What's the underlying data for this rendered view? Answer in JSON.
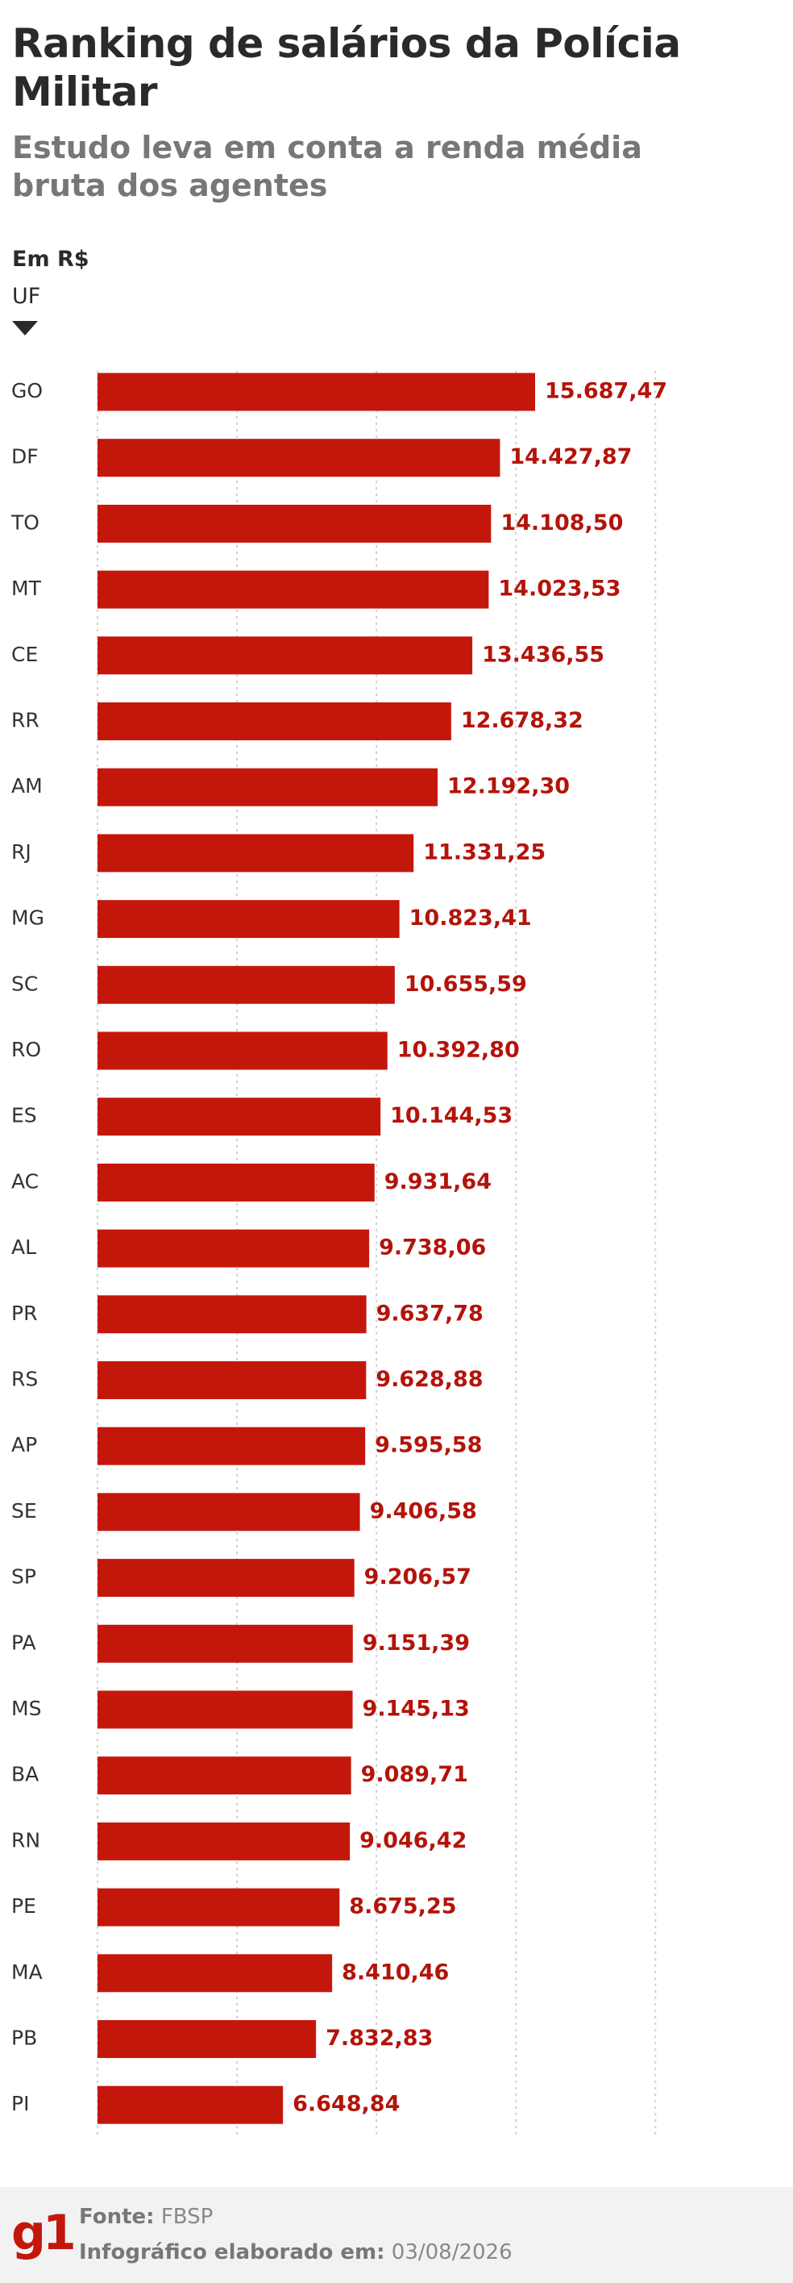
{
  "title": "Ranking de salários da Polícia Militar",
  "subtitle": "Estudo leva em conta a renda média bruta dos agentes",
  "unit_label": "Em R$",
  "category_header": "UF",
  "footer": {
    "logo": "g1",
    "source_label": "Fonte:",
    "source_value": "FBSP",
    "date_label": "Infográfico elaborado em:",
    "date_value": "03/08/2026"
  },
  "colors": {
    "bar": "#c4170c",
    "value_text": "#b3140a",
    "grid": "#d0d0d0"
  },
  "chart_data": {
    "type": "bar",
    "orientation": "horizontal",
    "categories": [
      "GO",
      "DF",
      "TO",
      "MT",
      "CE",
      "RR",
      "AM",
      "RJ",
      "MG",
      "SC",
      "RO",
      "ES",
      "AC",
      "AL",
      "PR",
      "RS",
      "AP",
      "SE",
      "SP",
      "PA",
      "MS",
      "BA",
      "RN",
      "PE",
      "MA",
      "PB",
      "PI"
    ],
    "values": [
      15687.47,
      14427.87,
      14108.5,
      14023.53,
      13436.55,
      12678.32,
      12192.3,
      11331.25,
      10823.41,
      10655.59,
      10392.8,
      10144.53,
      9931.64,
      9738.06,
      9637.78,
      9628.88,
      9595.58,
      9406.58,
      9206.57,
      9151.39,
      9145.13,
      9089.71,
      9046.42,
      8675.25,
      8410.46,
      7832.83,
      6648.84
    ],
    "value_labels": [
      "15.687,47",
      "14.427,87",
      "14.108,50",
      "14.023,53",
      "13.436,55",
      "12.678,32",
      "12.192,30",
      "11.331,25",
      "10.823,41",
      "10.655,59",
      "10.392,80",
      "10.144,53",
      "9.931,64",
      "9.738,06",
      "9.637,78",
      "9.628,88",
      "9.595,58",
      "9.406,58",
      "9.206,57",
      "9.151,39",
      "9.145,13",
      "9.089,71",
      "9.046,42",
      "8.675,25",
      "8.410,46",
      "7.832,83",
      "6.648,84"
    ],
    "xlim": [
      0,
      20000
    ],
    "grid_step": 5000,
    "grid": true,
    "legend": false
  }
}
